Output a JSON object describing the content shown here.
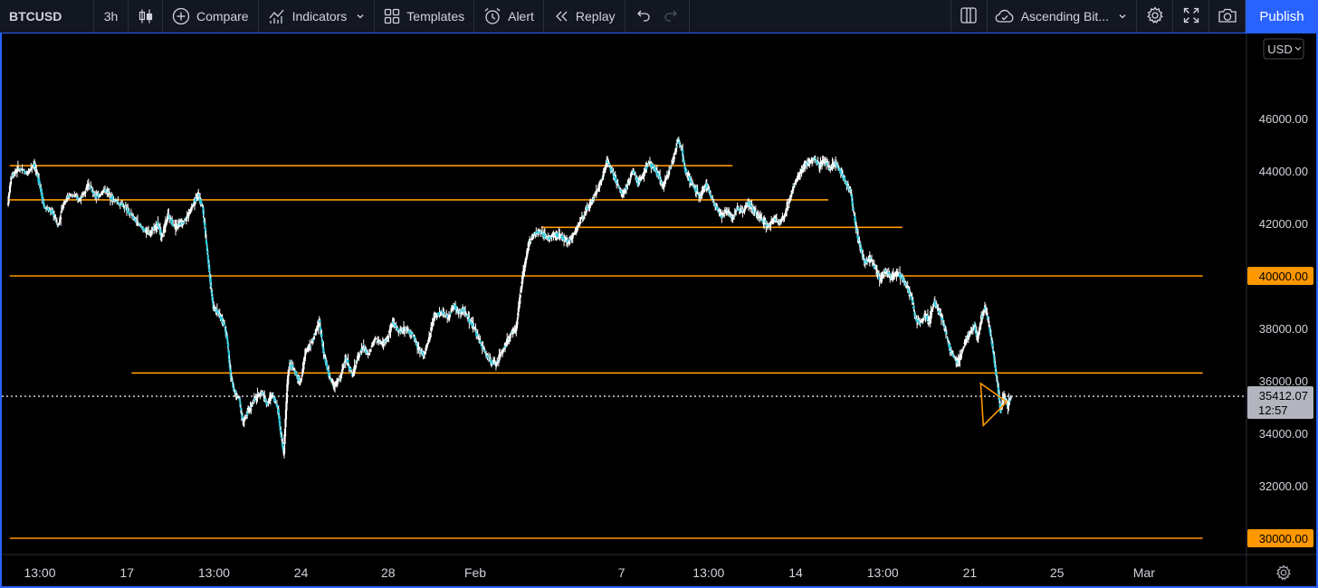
{
  "toolbar": {
    "symbol": "BTCUSD",
    "interval": "3h",
    "compare_label": "Compare",
    "indicators_label": "Indicators",
    "templates_label": "Templates",
    "alert_label": "Alert",
    "replay_label": "Replay",
    "layout_name": "Ascending Bit...",
    "publish_label": "Publish"
  },
  "currency": "USD",
  "colors": {
    "candle": "#26c6da",
    "wick": "#ffffff",
    "level_line": "#ff9800",
    "price_tag_bg": "#ff9800",
    "last_price_bg": "#b2b5be",
    "accent": "#2962ff"
  },
  "chart_data": {
    "type": "candlestick",
    "symbol": "BTCUSD",
    "interval": "3h",
    "ylim": [
      29000,
      47800
    ],
    "y_ticks": [
      "46000.00",
      "44000.00",
      "42000.00",
      "38000.00",
      "36000.00",
      "34000.00",
      "32000.00"
    ],
    "x_ticks": [
      "13:00",
      "17",
      "13:00",
      "24",
      "28",
      "Feb",
      "7",
      "13:00",
      "14",
      "13:00",
      "21",
      "25",
      "Mar"
    ],
    "x_tick_positions": [
      0.0,
      1.0,
      2.0,
      3.0,
      4.0,
      5.0,
      6.68,
      7.68,
      8.68,
      9.68,
      10.68,
      11.68,
      12.68
    ],
    "last_price": "35412.07",
    "countdown": "12:57",
    "horizontal_levels": [
      {
        "price": 44200,
        "from": -0.2,
        "to": 8.1,
        "label": null
      },
      {
        "price": 42900,
        "from": -0.2,
        "to": 9.2,
        "label": null
      },
      {
        "price": 41850,
        "from": 5.9,
        "to": 10.05,
        "label": null
      },
      {
        "price": 40000,
        "from": -0.2,
        "to": 13.5,
        "label": "40000.00"
      },
      {
        "price": 36300,
        "from": 1.2,
        "to": 13.5,
        "label": null
      },
      {
        "price": 30000,
        "from": -0.2,
        "to": 13.5,
        "label": "30000.00"
      }
    ],
    "triangle": [
      [
        10.95,
        35900
      ],
      [
        11.25,
        35200
      ],
      [
        10.98,
        34300
      ]
    ],
    "price_path": [
      [
        -0.22,
        42700
      ],
      [
        -0.18,
        43800
      ],
      [
        -0.1,
        44100
      ],
      [
        0.0,
        43900
      ],
      [
        0.08,
        44300
      ],
      [
        0.14,
        43600
      ],
      [
        0.2,
        42600
      ],
      [
        0.3,
        42400
      ],
      [
        0.36,
        41900
      ],
      [
        0.42,
        42800
      ],
      [
        0.5,
        43100
      ],
      [
        0.6,
        42900
      ],
      [
        0.7,
        43500
      ],
      [
        0.8,
        43000
      ],
      [
        0.9,
        43300
      ],
      [
        1.0,
        42900
      ],
      [
        1.1,
        42700
      ],
      [
        1.2,
        42300
      ],
      [
        1.3,
        41900
      ],
      [
        1.4,
        41600
      ],
      [
        1.5,
        42000
      ],
      [
        1.55,
        41500
      ],
      [
        1.62,
        42300
      ],
      [
        1.7,
        41900
      ],
      [
        1.78,
        42000
      ],
      [
        1.85,
        42300
      ],
      [
        1.92,
        42800
      ],
      [
        1.97,
        43100
      ],
      [
        2.02,
        42600
      ],
      [
        2.06,
        41300
      ],
      [
        2.1,
        40000
      ],
      [
        2.14,
        38800
      ],
      [
        2.2,
        38600
      ],
      [
        2.26,
        38200
      ],
      [
        2.3,
        37600
      ],
      [
        2.34,
        36200
      ],
      [
        2.38,
        35600
      ],
      [
        2.44,
        35300
      ],
      [
        2.48,
        34400
      ],
      [
        2.55,
        34900
      ],
      [
        2.62,
        35300
      ],
      [
        2.7,
        35600
      ],
      [
        2.76,
        35100
      ],
      [
        2.82,
        35500
      ],
      [
        2.88,
        35000
      ],
      [
        2.92,
        33900
      ],
      [
        2.95,
        33200
      ],
      [
        2.99,
        35900
      ],
      [
        3.02,
        36700
      ],
      [
        3.08,
        36300
      ],
      [
        3.14,
        35900
      ],
      [
        3.2,
        37100
      ],
      [
        3.28,
        37500
      ],
      [
        3.36,
        38300
      ],
      [
        3.4,
        37200
      ],
      [
        3.46,
        36300
      ],
      [
        3.52,
        35800
      ],
      [
        3.6,
        36100
      ],
      [
        3.66,
        36900
      ],
      [
        3.74,
        36200
      ],
      [
        3.8,
        36900
      ],
      [
        3.86,
        37300
      ],
      [
        3.92,
        37000
      ],
      [
        4.0,
        37600
      ],
      [
        4.08,
        37400
      ],
      [
        4.14,
        37600
      ],
      [
        4.2,
        38200
      ],
      [
        4.28,
        37900
      ],
      [
        4.36,
        38000
      ],
      [
        4.44,
        37700
      ],
      [
        4.5,
        37200
      ],
      [
        4.56,
        37000
      ],
      [
        4.62,
        37600
      ],
      [
        4.68,
        38500
      ],
      [
        4.76,
        38600
      ],
      [
        4.84,
        38400
      ],
      [
        4.9,
        38900
      ],
      [
        4.96,
        38600
      ],
      [
        5.02,
        38700
      ],
      [
        5.08,
        38300
      ],
      [
        5.14,
        38000
      ],
      [
        5.2,
        37500
      ],
      [
        5.26,
        37100
      ],
      [
        5.32,
        36800
      ],
      [
        5.38,
        36600
      ],
      [
        5.44,
        37000
      ],
      [
        5.5,
        37400
      ],
      [
        5.56,
        37800
      ],
      [
        5.62,
        38000
      ],
      [
        5.66,
        39200
      ],
      [
        5.7,
        40100
      ],
      [
        5.76,
        41200
      ],
      [
        5.82,
        41600
      ],
      [
        5.9,
        41700
      ],
      [
        5.98,
        41400
      ],
      [
        6.06,
        41600
      ],
      [
        6.14,
        41500
      ],
      [
        6.22,
        41300
      ],
      [
        6.3,
        41700
      ],
      [
        6.36,
        42100
      ],
      [
        6.42,
        42500
      ],
      [
        6.48,
        42800
      ],
      [
        6.54,
        43200
      ],
      [
        6.6,
        43700
      ],
      [
        6.66,
        44400
      ],
      [
        6.72,
        44000
      ],
      [
        6.78,
        43500
      ],
      [
        6.84,
        43100
      ],
      [
        6.9,
        43500
      ],
      [
        6.96,
        44000
      ],
      [
        7.02,
        43500
      ],
      [
        7.08,
        43900
      ],
      [
        7.14,
        44300
      ],
      [
        7.2,
        44100
      ],
      [
        7.26,
        43800
      ],
      [
        7.3,
        43400
      ],
      [
        7.36,
        43900
      ],
      [
        7.42,
        44400
      ],
      [
        7.48,
        45200
      ],
      [
        7.52,
        44800
      ],
      [
        7.56,
        44000
      ],
      [
        7.62,
        43600
      ],
      [
        7.68,
        43300
      ],
      [
        7.74,
        43000
      ],
      [
        7.8,
        43500
      ],
      [
        7.86,
        43000
      ],
      [
        7.92,
        42600
      ],
      [
        7.98,
        42300
      ],
      [
        8.04,
        42500
      ],
      [
        8.1,
        42200
      ],
      [
        8.16,
        42600
      ],
      [
        8.22,
        42400
      ],
      [
        8.28,
        42800
      ],
      [
        8.34,
        42500
      ],
      [
        8.4,
        42300
      ],
      [
        8.46,
        42100
      ],
      [
        8.52,
        41900
      ],
      [
        8.58,
        42200
      ],
      [
        8.64,
        42000
      ],
      [
        8.7,
        42300
      ],
      [
        8.74,
        42700
      ],
      [
        8.8,
        43400
      ],
      [
        8.86,
        43800
      ],
      [
        8.92,
        44200
      ],
      [
        8.98,
        44300
      ],
      [
        9.04,
        44500
      ],
      [
        9.1,
        44200
      ],
      [
        9.16,
        44400
      ],
      [
        9.22,
        44100
      ],
      [
        9.28,
        44300
      ],
      [
        9.34,
        44000
      ],
      [
        9.4,
        43600
      ],
      [
        9.46,
        43200
      ],
      [
        9.5,
        42300
      ],
      [
        9.54,
        41500
      ],
      [
        9.58,
        41000
      ],
      [
        9.62,
        40500
      ],
      [
        9.68,
        40700
      ],
      [
        9.74,
        40300
      ],
      [
        9.8,
        39900
      ],
      [
        9.86,
        40200
      ],
      [
        9.92,
        39900
      ],
      [
        9.98,
        40100
      ],
      [
        10.04,
        40000
      ],
      [
        10.1,
        39600
      ],
      [
        10.16,
        39200
      ],
      [
        10.2,
        38400
      ],
      [
        10.26,
        38200
      ],
      [
        10.32,
        38500
      ],
      [
        10.36,
        38300
      ],
      [
        10.42,
        39000
      ],
      [
        10.48,
        38600
      ],
      [
        10.54,
        38000
      ],
      [
        10.6,
        37200
      ],
      [
        10.66,
        36800
      ],
      [
        10.7,
        36700
      ],
      [
        10.76,
        37400
      ],
      [
        10.82,
        37800
      ],
      [
        10.88,
        38100
      ],
      [
        10.92,
        37600
      ],
      [
        10.96,
        38400
      ],
      [
        11.0,
        38800
      ],
      [
        11.04,
        38300
      ],
      [
        11.08,
        37500
      ],
      [
        11.12,
        36500
      ],
      [
        11.15,
        35800
      ],
      [
        11.18,
        34800
      ],
      [
        11.22,
        35500
      ],
      [
        11.26,
        35000
      ],
      [
        11.3,
        35412
      ]
    ]
  }
}
